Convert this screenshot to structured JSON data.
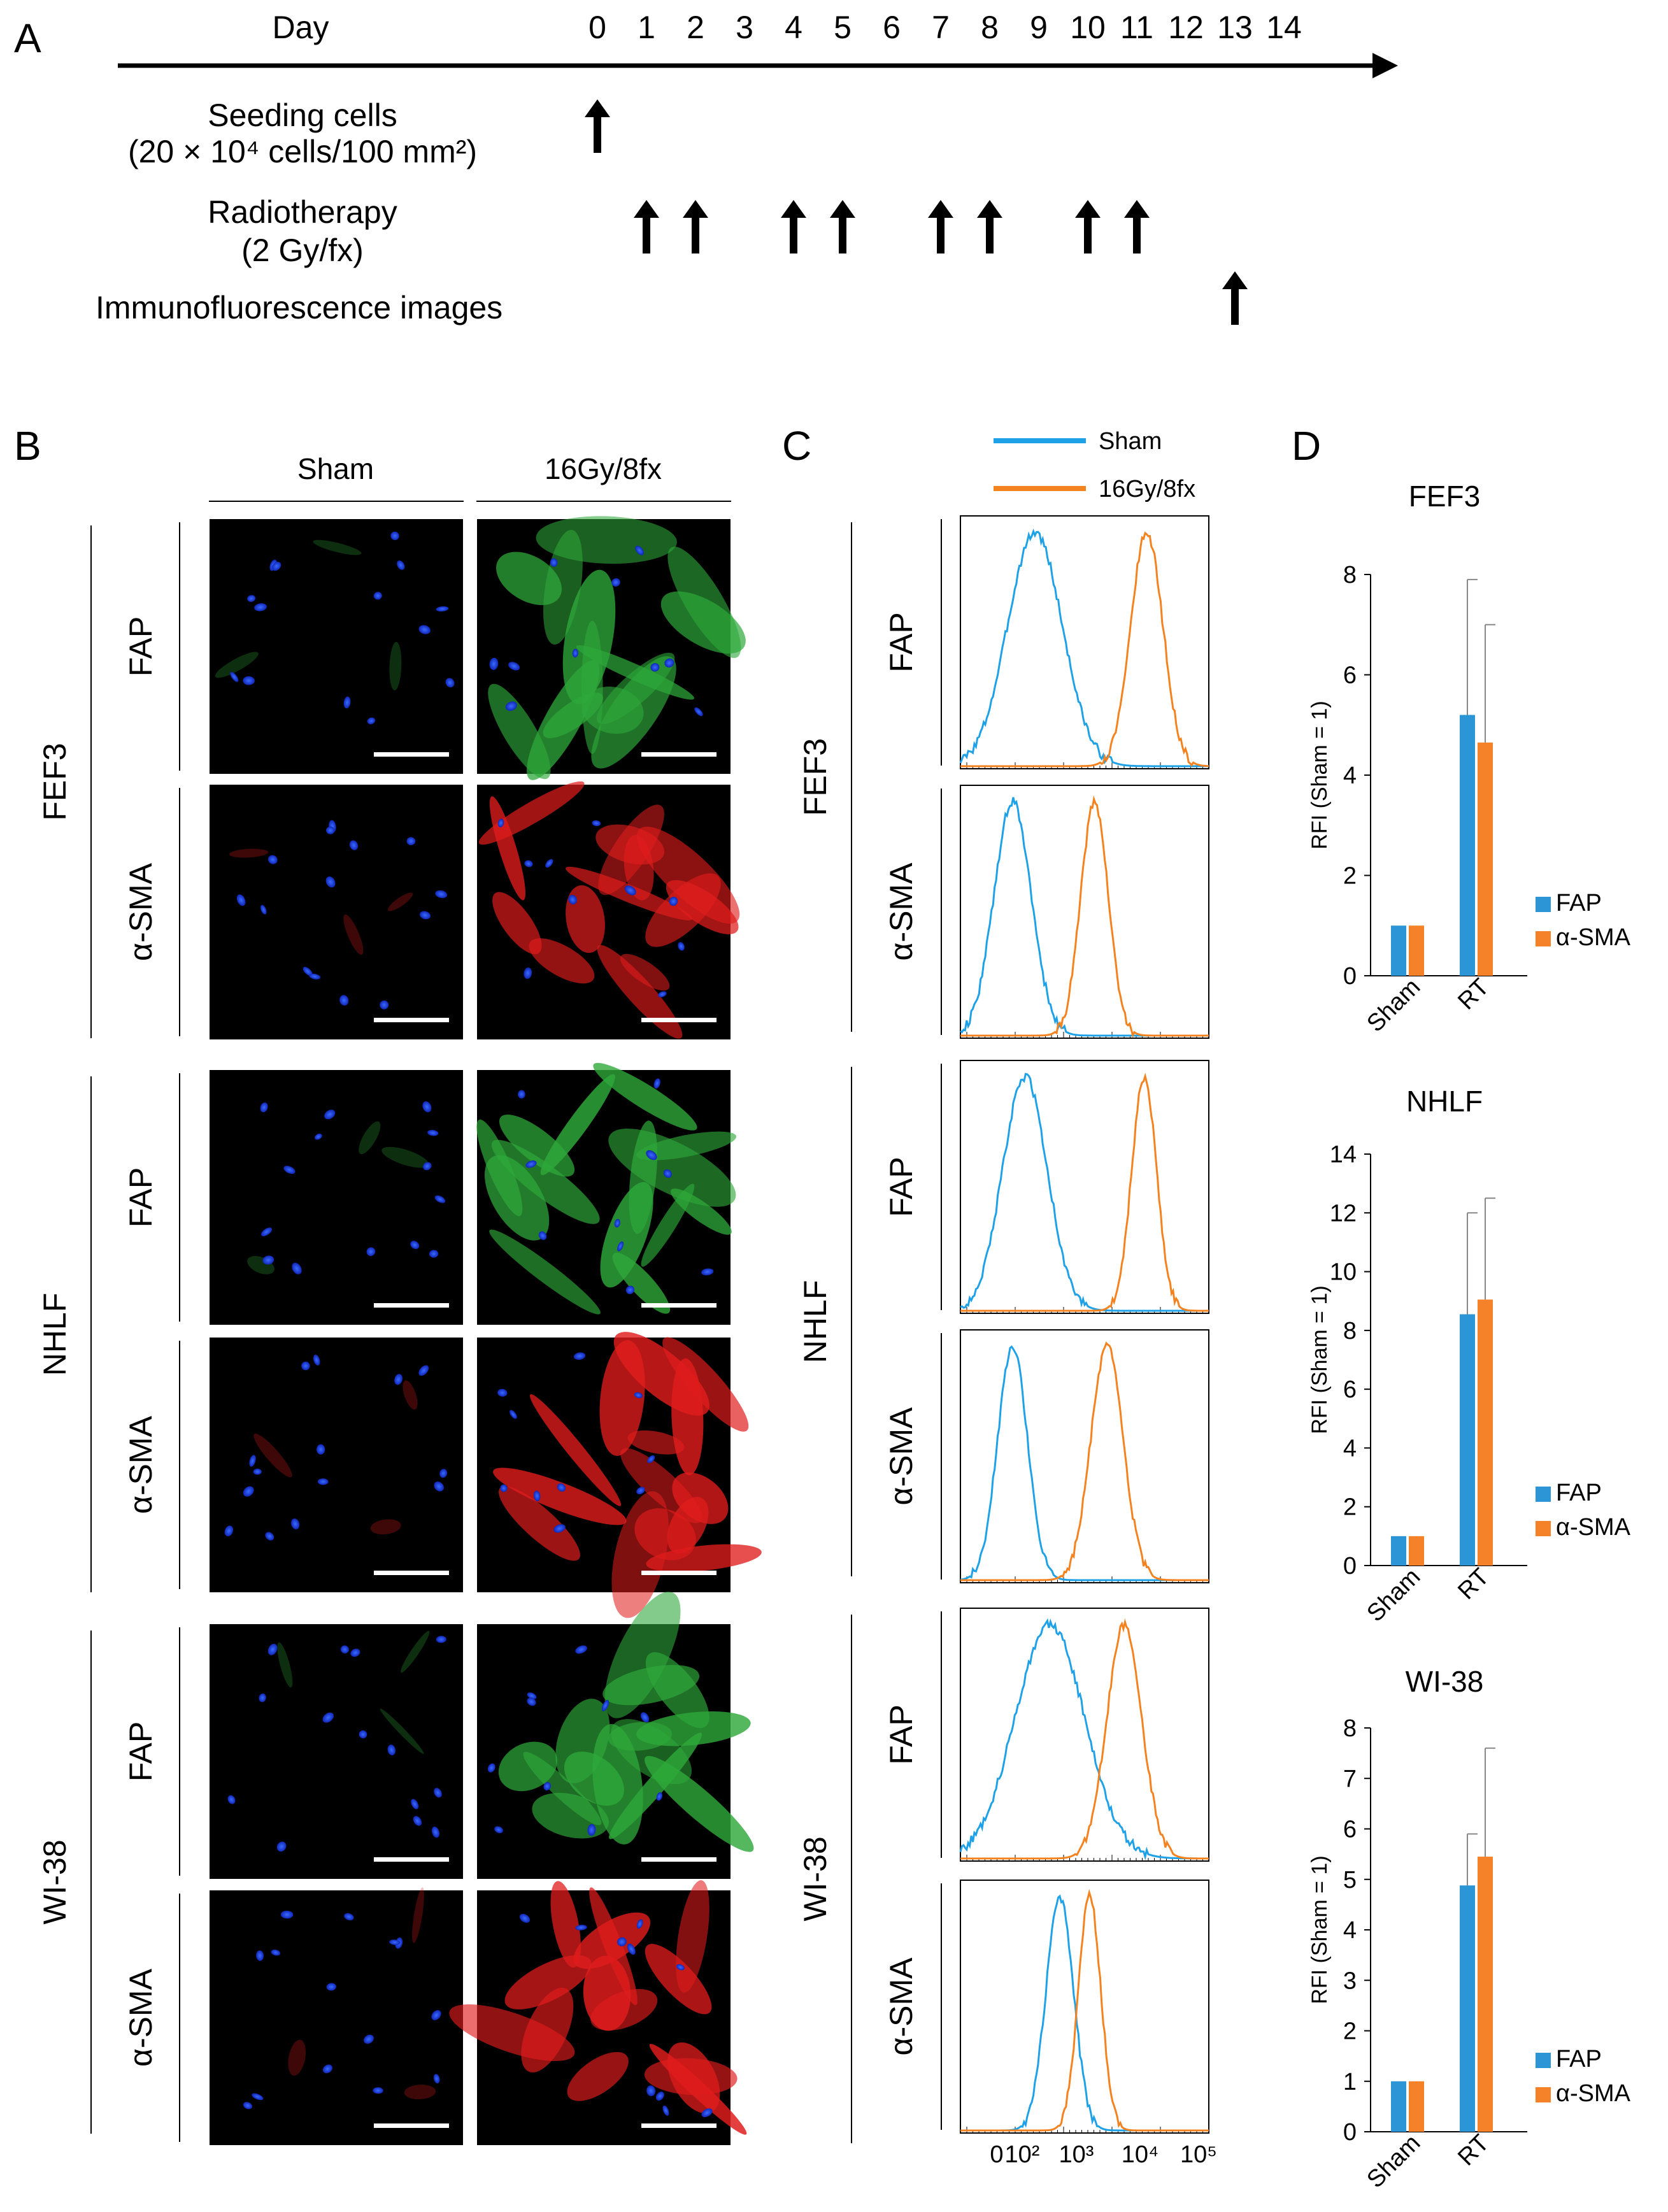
{
  "panels": {
    "A": "A",
    "B": "B",
    "C": "C",
    "D": "D"
  },
  "timeline": {
    "axis_label": "Day",
    "days": [
      "0",
      "1",
      "2",
      "3",
      "4",
      "5",
      "6",
      "7",
      "8",
      "9",
      "10",
      "11",
      "12",
      "13",
      "14"
    ],
    "events": [
      {
        "label_lines": [
          "Seeding cells",
          "(20 × 10⁴ cells/100 mm²)"
        ],
        "days": [
          0
        ]
      },
      {
        "label_lines": [
          "Radiotherapy",
          "(2 Gy/fx)"
        ],
        "days": [
          1,
          2,
          4,
          5,
          7,
          8,
          10,
          11
        ]
      },
      {
        "label_lines": [
          "Immunofluorescence images"
        ],
        "days": [
          13
        ]
      }
    ]
  },
  "microscopy": {
    "column_headers": [
      "Sham",
      "16Gy/8fx"
    ],
    "cell_lines": [
      "FEF3",
      "NHLF",
      "WI-38"
    ],
    "markers": [
      "FAP",
      "α-SMA"
    ]
  },
  "flow": {
    "legend": [
      "Sham",
      "16Gy/8fx"
    ],
    "colors": {
      "sham": "#1ea1e6",
      "rt": "#f4821f"
    },
    "x_ticks": [
      "0",
      "10²",
      "10³",
      "10⁴",
      "10⁵"
    ]
  },
  "chart_data": [
    {
      "type": "bar",
      "title": "FEF3",
      "ylabel": "RFI (Sham = 1)",
      "categories": [
        "Sham",
        "RT"
      ],
      "ylim": [
        0,
        8
      ],
      "yticks": [
        "0",
        "2",
        "4",
        "6",
        "8"
      ],
      "series": [
        {
          "name": "FAP",
          "color": "#2b95d6",
          "values": [
            1,
            5.2
          ],
          "error": [
            0,
            2.7
          ]
        },
        {
          "name": "α-SMA",
          "color": "#f58128",
          "values": [
            1,
            4.65
          ],
          "error": [
            0,
            2.35
          ]
        }
      ]
    },
    {
      "type": "bar",
      "title": "NHLF",
      "ylabel": "RFI (Sham = 1)",
      "categories": [
        "Sham",
        "RT"
      ],
      "ylim": [
        0,
        14
      ],
      "yticks": [
        "0",
        "2",
        "4",
        "6",
        "8",
        "10",
        "12",
        "14"
      ],
      "series": [
        {
          "name": "FAP",
          "color": "#2b95d6",
          "values": [
            1,
            8.55
          ],
          "error": [
            0,
            3.45
          ]
        },
        {
          "name": "α-SMA",
          "color": "#f58128",
          "values": [
            1,
            9.05
          ],
          "error": [
            0,
            3.45
          ]
        }
      ]
    },
    {
      "type": "bar",
      "title": "WI-38",
      "ylabel": "RFI (Sham = 1)",
      "categories": [
        "Sham",
        "RT"
      ],
      "ylim": [
        0,
        8
      ],
      "yticks": [
        "0",
        "1",
        "2",
        "3",
        "4",
        "5",
        "6",
        "7",
        "8"
      ],
      "series": [
        {
          "name": "FAP",
          "color": "#2b95d6",
          "values": [
            1,
            4.88
          ],
          "error": [
            0,
            1.02
          ]
        },
        {
          "name": "α-SMA",
          "color": "#f58128",
          "values": [
            1,
            5.45
          ],
          "error": [
            0,
            2.15
          ]
        }
      ]
    }
  ]
}
